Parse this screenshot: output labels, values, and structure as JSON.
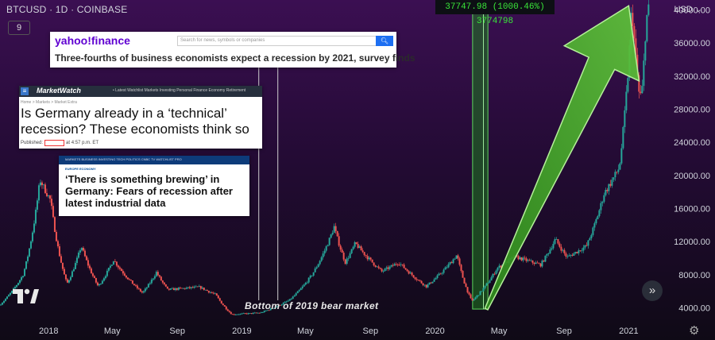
{
  "header": {
    "symbol": "BTCUSD · 1D · COINBASE",
    "interval_box": "9",
    "currency": "USD"
  },
  "measure": {
    "text": "37747.98 (1000.46%) 3774798",
    "color": "#39e639"
  },
  "annotation": {
    "bottom_label": "Bottom of 2019 bear market"
  },
  "clips": {
    "yahoo": {
      "logo": "yahoo!finance",
      "search_placeholder": "Search for news, symbols or companies",
      "headline": "Three-fourths of business economists expect a recession by 2021, survey finds"
    },
    "marketwatch": {
      "logo": "MarketWatch",
      "nav": "• Latest   Watchlist   Markets   Investing   Personal Finance   Economy   Retirement",
      "breadcrumb": "Home > Markets > Market Extra",
      "headline": "Is Germany already in a ‘technical’ recession? These economists think so",
      "published_prefix": "Published:",
      "published_time": "at 4:57 p.m. ET"
    },
    "cnbc": {
      "nav": "MARKETS   BUSINESS   INVESTING   TECH   POLITICS   CNBC TV   WATCHLIST   PRO",
      "section": "EUROPE ECONOMY",
      "headline": "‘There is something brewing’ in Germany: Fears of recession after latest industrial data"
    }
  },
  "icons": {
    "logo": "tradingview-logo-icon",
    "go": "scroll-to-latest-icon",
    "settings": "gear-icon"
  },
  "colors": {
    "up": "#26a69a",
    "down": "#ef5350",
    "arrow": "#4caf2a",
    "highlight": "#1f7a1f"
  },
  "chart_data": {
    "type": "candlestick",
    "title": "",
    "y_axis": {
      "position": "right",
      "ticks": [
        4000,
        8000,
        12000,
        16000,
        20000,
        24000,
        28000,
        32000,
        36000,
        40000
      ],
      "ylim": [
        2800,
        41200
      ]
    },
    "x_axis": {
      "ticks": [
        "2018",
        "May",
        "Sep",
        "2019",
        "May",
        "Sep",
        "2020",
        "May",
        "Sep",
        "2021"
      ]
    },
    "price_path": [
      {
        "date": "2017-10-01",
        "price": 4300
      },
      {
        "date": "2017-11-15",
        "price": 8000
      },
      {
        "date": "2017-12-17",
        "price": 19500
      },
      {
        "date": "2018-01-06",
        "price": 17000
      },
      {
        "date": "2018-02-06",
        "price": 6900
      },
      {
        "date": "2018-03-05",
        "price": 11500
      },
      {
        "date": "2018-04-06",
        "price": 6600
      },
      {
        "date": "2018-05-05",
        "price": 9800
      },
      {
        "date": "2018-06-29",
        "price": 5800
      },
      {
        "date": "2018-07-25",
        "price": 8300
      },
      {
        "date": "2018-08-15",
        "price": 6200
      },
      {
        "date": "2018-10-15",
        "price": 6500
      },
      {
        "date": "2018-11-14",
        "price": 5600
      },
      {
        "date": "2018-12-15",
        "price": 3200
      },
      {
        "date": "2019-02-07",
        "price": 3400
      },
      {
        "date": "2019-04-02",
        "price": 4900
      },
      {
        "date": "2019-05-15",
        "price": 8000
      },
      {
        "date": "2019-06-26",
        "price": 13800
      },
      {
        "date": "2019-07-17",
        "price": 9500
      },
      {
        "date": "2019-08-05",
        "price": 11800
      },
      {
        "date": "2019-09-24",
        "price": 8400
      },
      {
        "date": "2019-10-26",
        "price": 9500
      },
      {
        "date": "2019-12-17",
        "price": 6600
      },
      {
        "date": "2020-02-13",
        "price": 10400
      },
      {
        "date": "2020-03-12",
        "price": 4800
      },
      {
        "date": "2020-04-29",
        "price": 8800
      },
      {
        "date": "2020-06-01",
        "price": 10200
      },
      {
        "date": "2020-07-20",
        "price": 9200
      },
      {
        "date": "2020-08-17",
        "price": 12300
      },
      {
        "date": "2020-09-08",
        "price": 10100
      },
      {
        "date": "2020-10-15",
        "price": 11500
      },
      {
        "date": "2020-11-17",
        "price": 17800
      },
      {
        "date": "2020-12-16",
        "price": 21000
      },
      {
        "date": "2021-01-02",
        "price": 33000
      },
      {
        "date": "2021-01-08",
        "price": 40500
      },
      {
        "date": "2021-01-22",
        "price": 30000
      },
      {
        "date": "2021-01-27",
        "price": 29500
      },
      {
        "date": "2021-02-03",
        "price": 37000
      },
      {
        "date": "2021-02-07",
        "price": 40000
      }
    ],
    "highlight_range": {
      "start": "2020-03-12",
      "end": "2020-04-10",
      "low": 3850,
      "high": 41500
    },
    "arrow": {
      "from": {
        "date": "2020-04-07",
        "price": 3850
      },
      "to": {
        "date": "2021-01-01",
        "price": 40500
      }
    },
    "vertical_markers": [
      "2019-02-02",
      "2019-03-10"
    ],
    "measurement": {
      "change": 37747.98,
      "percent": 1000.46
    }
  }
}
